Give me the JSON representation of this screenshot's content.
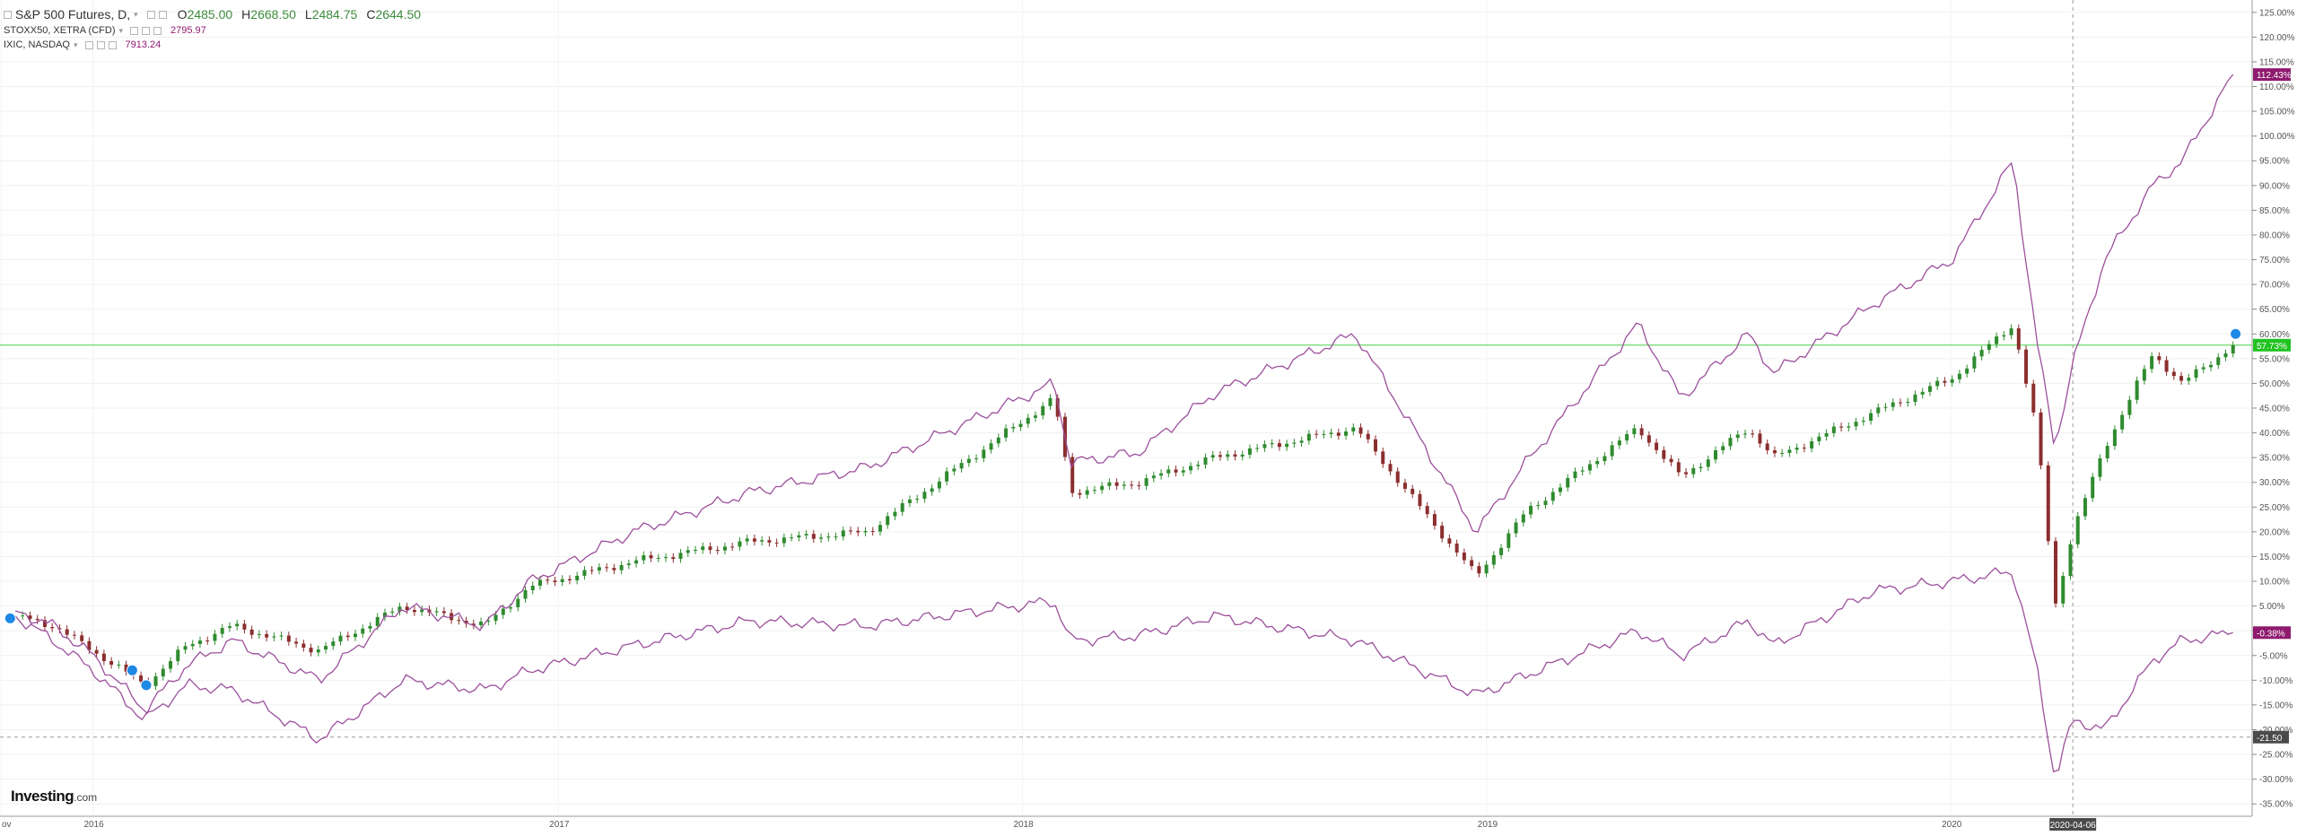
{
  "legend": {
    "main_symbol": "S&P 500 Futures, D,",
    "ohlc": {
      "o_label": "O",
      "o": "2485.00",
      "h_label": "H",
      "h": "2668.50",
      "l_label": "L",
      "l": "2484.75",
      "c_label": "C",
      "c": "2644.50"
    },
    "row2_symbol": "STOXX50, XETRA (CFD)",
    "row2_value": "2795.97",
    "row3_symbol": "IXIC, NASDAQ",
    "row3_value": "7913.24"
  },
  "branding": {
    "logo_main": "Investing",
    "logo_suffix": ".com"
  },
  "colors": {
    "up_candle": "#2e8b2e",
    "down_candle": "#8b2e2e",
    "compare_line": "#9c4f9c",
    "price_line": "#4ccd4c",
    "badge_purple": "#8e1a6e",
    "badge_green": "#21c321",
    "badge_dark": "#555555"
  },
  "chart_data": {
    "type": "line",
    "title": "S&P 500 Futures, D,",
    "y_unit": "%",
    "ylim": [
      -37.5,
      127.5
    ],
    "y_ticks": [
      -35,
      -30,
      -25,
      -20,
      -15,
      -10,
      -5,
      0,
      5,
      10,
      15,
      20,
      25,
      30,
      35,
      40,
      45,
      50,
      55,
      60,
      65,
      70,
      75,
      80,
      85,
      90,
      95,
      100,
      105,
      110,
      115,
      120,
      125
    ],
    "x_ticks": [
      "ov",
      "2016",
      "2017",
      "2018",
      "2019",
      "2020"
    ],
    "crosshair_x_label": "2020-04-06",
    "crosshair_y_label": "-21.50",
    "horizontal_line_value": 57.73,
    "grid": true,
    "badges": [
      {
        "series": "IXIC, NASDAQ",
        "text": "112.43%",
        "value": 112.43
      },
      {
        "series": "S&P 500 Futures",
        "text": "57.73%",
        "value": 57.73
      },
      {
        "series": "STOXX50, XETRA (CFD)",
        "text": "-0.38%",
        "value": -0.38
      }
    ],
    "series": [
      {
        "name": "S&P 500 Futures, D,",
        "kind": "candles",
        "x": [
          "2015-11-01",
          "2015-12-01",
          "2016-01-01",
          "2016-02-11",
          "2016-03-15",
          "2016-04-20",
          "2016-06-27",
          "2016-09-01",
          "2016-11-04",
          "2016-12-10",
          "2017-03-01",
          "2017-06-01",
          "2017-09-01",
          "2018-01-26",
          "2018-02-08",
          "2018-04-02",
          "2018-06-01",
          "2018-09-20",
          "2018-12-24",
          "2019-02-01",
          "2019-04-30",
          "2019-06-03",
          "2019-07-26",
          "2019-08-15",
          "2019-11-01",
          "2020-01-02",
          "2020-02-19",
          "2020-03-09",
          "2020-03-23",
          "2020-04-06",
          "2020-05-01",
          "2020-06-08",
          "2020-07-01",
          "2020-08-10"
        ],
        "values": [
          3,
          1,
          -4,
          -11,
          -3,
          1,
          -4,
          5,
          1,
          9,
          14,
          18,
          20,
          47,
          28,
          30,
          35,
          41,
          11,
          24,
          41,
          31,
          41,
          35,
          44,
          51,
          62,
          40,
          5,
          20,
          37,
          56,
          50,
          57.7
        ]
      },
      {
        "name": "IXIC, NASDAQ",
        "kind": "line",
        "x": [
          "2015-11-01",
          "2015-12-01",
          "2016-01-01",
          "2016-02-11",
          "2016-03-15",
          "2016-04-20",
          "2016-06-27",
          "2016-09-01",
          "2016-11-04",
          "2016-12-10",
          "2017-03-01",
          "2017-06-01",
          "2017-09-01",
          "2018-01-26",
          "2018-02-08",
          "2018-04-02",
          "2018-06-01",
          "2018-09-20",
          "2018-12-24",
          "2019-02-01",
          "2019-04-30",
          "2019-06-03",
          "2019-07-26",
          "2019-08-15",
          "2019-11-01",
          "2020-01-02",
          "2020-02-19",
          "2020-03-09",
          "2020-03-23",
          "2020-04-06",
          "2020-05-01",
          "2020-06-08",
          "2020-07-01",
          "2020-08-10"
        ],
        "values": [
          4,
          1,
          -5,
          -16,
          -7,
          -2,
          -10,
          5,
          1,
          10,
          20,
          28,
          33,
          50,
          34,
          36,
          48,
          60,
          20,
          34,
          62,
          47,
          60,
          52,
          66,
          75,
          95,
          58,
          37,
          54,
          75,
          90,
          95,
          112.43
        ]
      },
      {
        "name": "STOXX50, XETRA (CFD)",
        "kind": "line",
        "x": [
          "2015-11-01",
          "2015-12-01",
          "2016-01-01",
          "2016-02-11",
          "2016-03-15",
          "2016-04-20",
          "2016-06-27",
          "2016-09-01",
          "2016-11-04",
          "2016-12-10",
          "2017-03-01",
          "2017-06-01",
          "2017-09-01",
          "2018-01-26",
          "2018-02-08",
          "2018-04-02",
          "2018-06-01",
          "2018-09-20",
          "2018-12-24",
          "2019-02-01",
          "2019-04-30",
          "2019-06-03",
          "2019-07-26",
          "2019-08-15",
          "2019-11-01",
          "2020-01-02",
          "2020-02-19",
          "2020-03-09",
          "2020-03-23",
          "2020-04-06",
          "2020-05-01",
          "2020-06-08",
          "2020-07-01",
          "2020-08-10"
        ],
        "values": [
          3,
          -2,
          -8,
          -18,
          -11,
          -12,
          -22,
          -10,
          -12,
          -8,
          -3,
          2,
          1,
          6,
          -2,
          -1,
          3,
          -2,
          -13,
          -9,
          0,
          -5,
          2,
          -3,
          8,
          10,
          12,
          -8,
          -30,
          -18,
          -20,
          -6,
          -2,
          -0.38
        ]
      }
    ]
  }
}
